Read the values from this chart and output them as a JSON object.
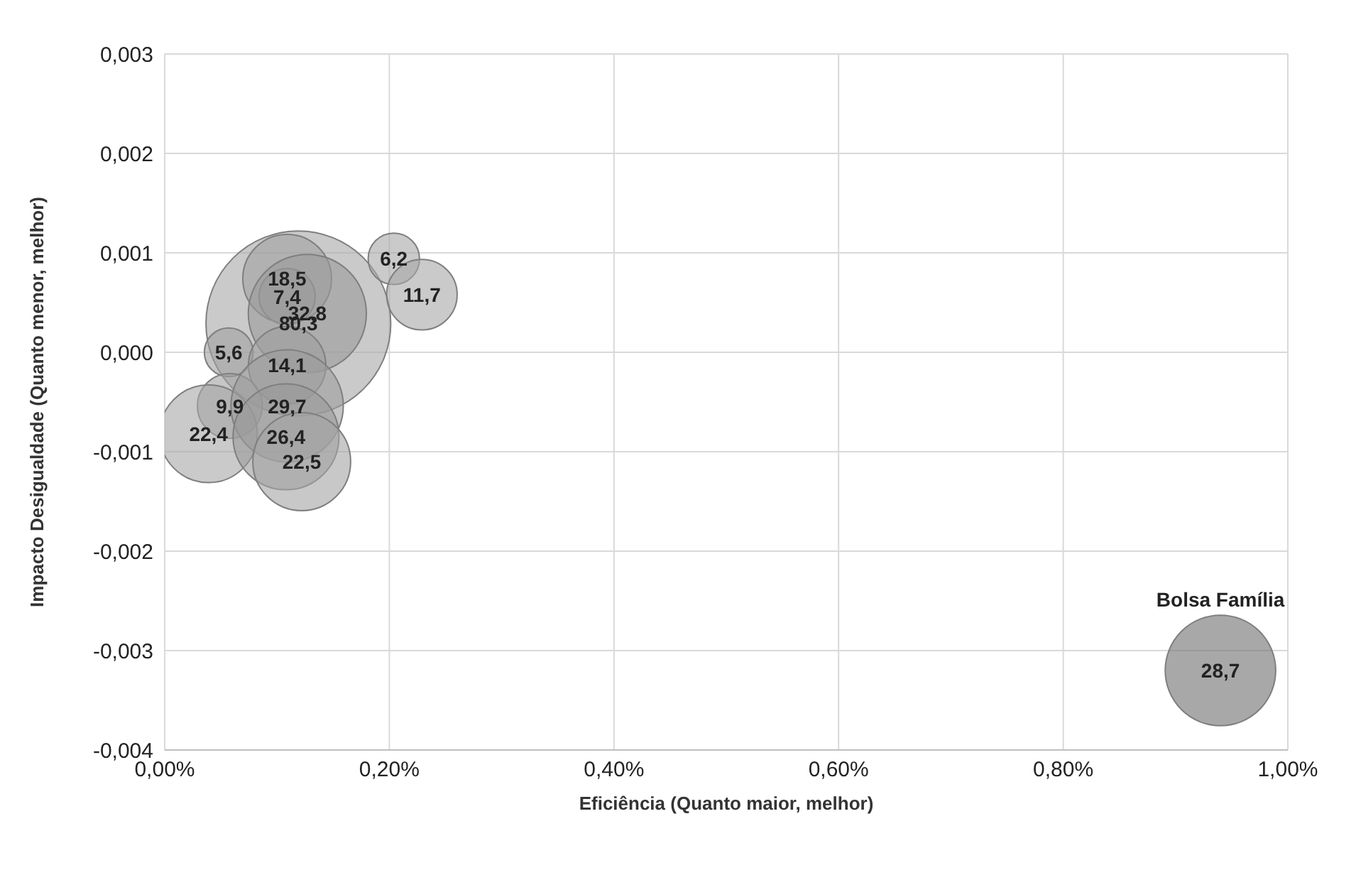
{
  "chart_data": {
    "type": "bubble",
    "xlabel": "Eficiência (Quanto maior, melhor)",
    "ylabel": "Impacto Desigualdade (Quanto menor, melhor)",
    "x": [
      0.119,
      0.109,
      0.109,
      0.127,
      0.204,
      0.229,
      0.057,
      0.109,
      0.058,
      0.039,
      0.109,
      0.108,
      0.122,
      0.94
    ],
    "values": [
      0.00029,
      0.00074,
      0.00056,
      0.00039,
      0.00094,
      0.00058,
      0,
      -0.00013,
      -0.00054,
      -0.00082,
      -0.00054,
      -0.00085,
      -0.0011,
      -0.0032
    ],
    "sizes": [
      80.3,
      18.5,
      7.4,
      32.8,
      6.2,
      11.7,
      5.6,
      14.1,
      9.9,
      22.4,
      29.7,
      26.4,
      22.5,
      28.7
    ],
    "value_labels": [
      "80,3",
      "18,5",
      "7,4",
      "32,8",
      "6,2",
      "11,7",
      "5,6",
      "14,1",
      "9,9",
      "22,4",
      "29,7",
      "26,4",
      "22,5",
      "28,7"
    ],
    "colors": [
      "#a6a6a6",
      "#a0a0a0",
      "#9c9c9c",
      "#9a9a9a",
      "#a6a6a6",
      "#a6a6a6",
      "#a0a0a0",
      "#9e9e9e",
      "#a0a0a0",
      "#a6a6a6",
      "#9c9c9c",
      "#999999",
      "#a3a3a3",
      "#6e6e6e"
    ],
    "xlim": [
      0,
      1
    ],
    "xticks": [
      {
        "value": 0,
        "label": "0,00%"
      },
      {
        "value": 0.2,
        "label": "0,20%"
      },
      {
        "value": 0.4,
        "label": "0,40%"
      },
      {
        "value": 0.6,
        "label": "0,60%"
      },
      {
        "value": 0.8,
        "label": "0,80%"
      },
      {
        "value": 1,
        "label": "1,00%"
      }
    ],
    "ylim": [
      -0.004,
      0.003
    ],
    "yticks": [
      {
        "value": -0.004,
        "label": "-0,004"
      },
      {
        "value": -0.003,
        "label": "-0,003"
      },
      {
        "value": -0.002,
        "label": "-0,002"
      },
      {
        "value": -0.001,
        "label": "-0,001"
      },
      {
        "value": 0,
        "label": "0,000"
      },
      {
        "value": 0.001,
        "label": "0,001"
      },
      {
        "value": 0.002,
        "label": "0,002"
      },
      {
        "value": 0.003,
        "label": "0,003"
      }
    ],
    "grid": true,
    "annotations": [
      {
        "text": "Bolsa Família",
        "x": 0.94,
        "y": -0.0032
      }
    ]
  }
}
